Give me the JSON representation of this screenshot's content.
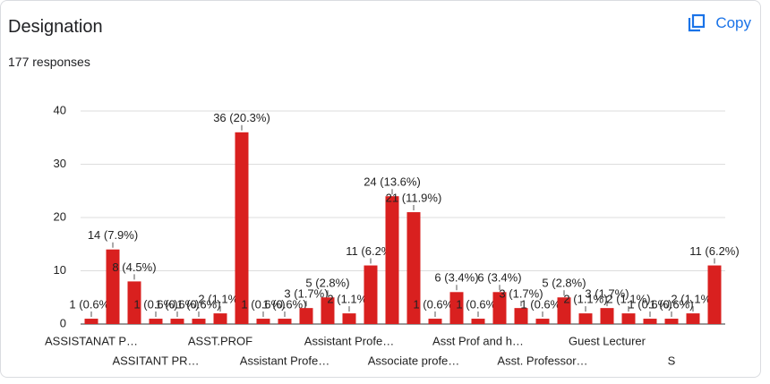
{
  "header": {
    "title": "Designation",
    "responses": "177 responses",
    "copy": "Copy"
  },
  "chart_data": {
    "type": "bar",
    "categories": [
      "ASSISTANAT P…",
      null,
      null,
      "ASSITANT PR…",
      null,
      null,
      "ASST.PROF",
      null,
      null,
      "Assistant Profe…",
      null,
      null,
      "Assistant Profe…",
      null,
      null,
      "Associate profe…",
      null,
      null,
      "Asst Prof and h…",
      null,
      null,
      "Asst. Professor…",
      null,
      null,
      "Guest Lecturer",
      null,
      null,
      "S",
      null,
      null
    ],
    "values": [
      1,
      14,
      8,
      1,
      1,
      1,
      2,
      36,
      1,
      1,
      3,
      5,
      2,
      11,
      24,
      21,
      1,
      6,
      1,
      6,
      3,
      1,
      5,
      2,
      3,
      2,
      1,
      1,
      2,
      11
    ],
    "value_labels": [
      "1 (0.6%)",
      "14 (7.9%)",
      "8 (4.5%)",
      "1 (0.6%)",
      "1 (0.6%)",
      "1 (0.6%)",
      "2 (1.1%)",
      "36 (20.3%)",
      "1 (0.6%)",
      "1 (0.6%)",
      "3 (1.7%)",
      "5 (2.8%)",
      "2 (1.1%)",
      "11 (6.2%)",
      "24 (13.6%)",
      "21 (11.9%)",
      "1 (0.6%)",
      "6 (3.4%)",
      "1 (0.6%)",
      "6 (3.4%)",
      "3 (1.7%)",
      "1 (0.6%)",
      "5 (2.8%)",
      "2 (1.1%)",
      "3 (1.7%)",
      "2 (1.1%)",
      "1 (0.6%)",
      "1 (0.6%)",
      "2 (1.1%)",
      "11 (6.2%)"
    ],
    "color": "#d9201f",
    "ylim": [
      0,
      40
    ],
    "yticks": [
      0,
      10,
      20,
      30,
      40
    ],
    "grid": true
  }
}
